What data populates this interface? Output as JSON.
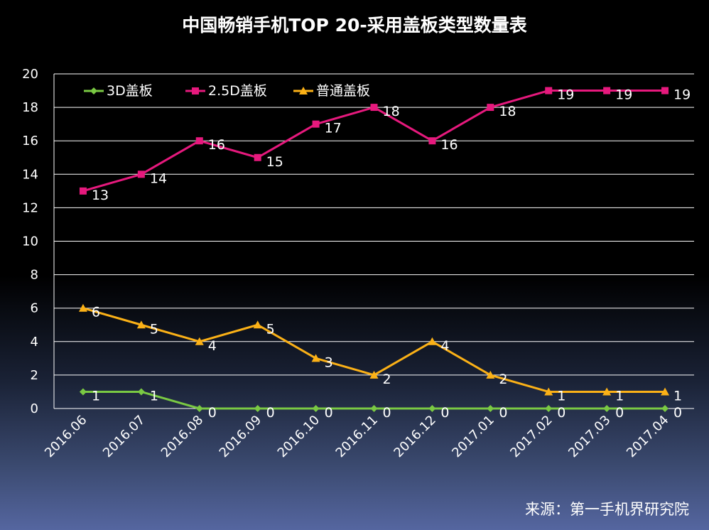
{
  "chart_data": {
    "type": "line",
    "title": "中国畅销手机TOP 20-采用盖板类型数量表",
    "source": "来源：第一手机界研究院",
    "categories": [
      "2016.06",
      "2016.07",
      "2016.08",
      "2016.09",
      "2016.10",
      "2016.11",
      "2016.12",
      "2017.01",
      "2017.02",
      "2017.03",
      "2017.04"
    ],
    "ylim": [
      0,
      20
    ],
    "yticks": [
      0,
      2,
      4,
      6,
      8,
      10,
      12,
      14,
      16,
      18,
      20
    ],
    "grid": true,
    "legend_position": "top-left",
    "series": [
      {
        "name": "3D盖板",
        "color": "#7ac943",
        "marker": "diamond",
        "values": [
          1,
          1,
          0,
          0,
          0,
          0,
          0,
          0,
          0,
          0,
          0
        ]
      },
      {
        "name": "2.5D盖板",
        "color": "#e6197d",
        "marker": "square",
        "values": [
          13,
          14,
          16,
          15,
          17,
          18,
          16,
          18,
          19,
          19,
          19
        ]
      },
      {
        "name": "普通盖板",
        "color": "#fbb117",
        "marker": "triangle",
        "values": [
          6,
          5,
          4,
          5,
          3,
          2,
          4,
          2,
          1,
          1,
          1
        ]
      }
    ]
  }
}
